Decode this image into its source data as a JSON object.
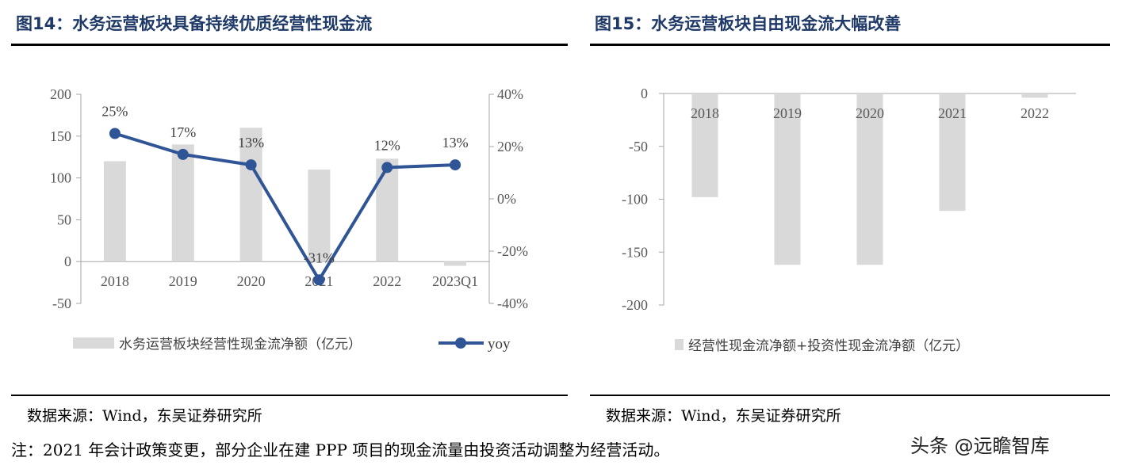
{
  "left": {
    "title": "图14：水务运营板块具备持续优质经营性现金流",
    "source": "数据来源：Wind，东吴证券研究所",
    "chart_data": {
      "type": "bar+line",
      "categories": [
        "2018",
        "2019",
        "2020",
        "2021",
        "2022",
        "2023Q1"
      ],
      "series": [
        {
          "name": "水务运营板块经营性现金流净额（亿元）",
          "type": "bar",
          "axis": "left",
          "color": "#d9d9d9",
          "values": [
            120,
            140,
            160,
            110,
            123,
            -5
          ]
        },
        {
          "name": "yoy",
          "type": "line",
          "axis": "right",
          "color": "#2f5597",
          "values": [
            25,
            17,
            13,
            -31,
            12,
            13
          ],
          "labels": [
            "25%",
            "17%",
            "13%",
            "-31%",
            "12%",
            "13%"
          ]
        }
      ],
      "y_left": {
        "min": -50,
        "max": 200,
        "ticks": [
          "200",
          "150",
          "100",
          "50",
          "0",
          "-50"
        ],
        "tick_values": [
          200,
          150,
          100,
          50,
          0,
          -50
        ]
      },
      "y_right": {
        "min": -40,
        "max": 40,
        "ticks": [
          "40%",
          "20%",
          "0%",
          "-20%",
          "-40%"
        ],
        "tick_values": [
          40,
          20,
          0,
          -20,
          -40
        ]
      },
      "legend_position": "bottom",
      "grid": false
    }
  },
  "right": {
    "title": "图15：水务运营板块自由现金流大幅改善",
    "source": "数据来源：Wind，东吴证券研究所",
    "chart_data": {
      "type": "bar",
      "categories": [
        "2018",
        "2019",
        "2020",
        "2021",
        "2022"
      ],
      "series": [
        {
          "name": "经营性现金流净额+投资性现金流净额（亿元）",
          "color": "#d9d9d9",
          "values": [
            -98,
            -162,
            -162,
            -111,
            -4
          ]
        }
      ],
      "y": {
        "min": -200,
        "max": 0,
        "ticks": [
          "0",
          "-50",
          "-100",
          "-150",
          "-200"
        ],
        "tick_values": [
          0,
          -50,
          -100,
          -150,
          -200
        ]
      },
      "legend_position": "bottom",
      "grid": false
    }
  },
  "note": "注：2021 年会计政策变更，部分企业在建 PPP 项目的现金流量由投资活动调整为经营活动。",
  "watermark": "头条 @远瞻智库"
}
